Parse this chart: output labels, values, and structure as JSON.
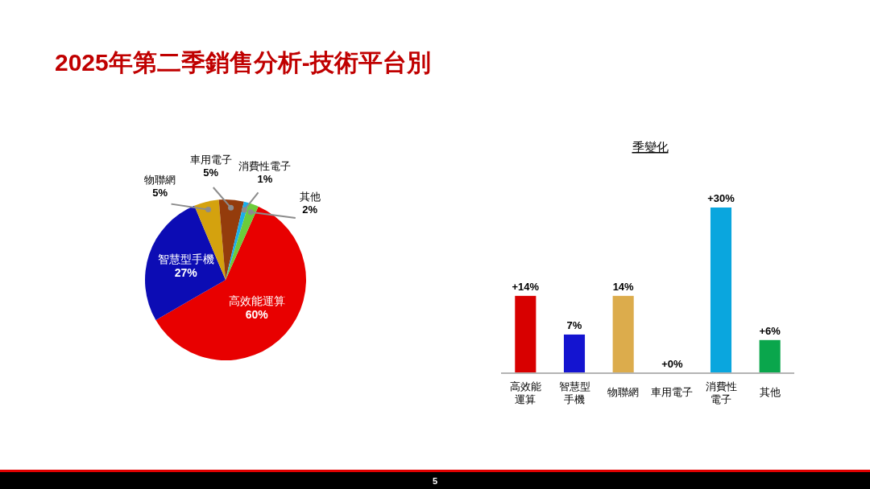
{
  "chart_data": [
    {
      "type": "pie",
      "title": "2025年第二季銷售分析-技術平台別",
      "categories": [
        "高效能運算",
        "智慧型手機",
        "物聯網",
        "車用電子",
        "消費性電子",
        "其他"
      ],
      "values": [
        60,
        27,
        5,
        5,
        1,
        2
      ],
      "value_labels": [
        "60%",
        "27%",
        "5%",
        "5%",
        "1%",
        "2%"
      ],
      "colors": [
        "#e80000",
        "#0c0cb4",
        "#d4a20e",
        "#943c0c",
        "#1aaeea",
        "#6ccb3a"
      ],
      "annotations": [
        "5"
      ]
    },
    {
      "type": "bar",
      "title": "季變化",
      "categories": [
        "高效能運算",
        "智慧型手機",
        "物聯網",
        "車用電子",
        "消費性電子",
        "其他"
      ],
      "values": [
        14,
        7,
        14,
        0,
        30,
        6
      ],
      "value_labels": [
        "+14%",
        "7%",
        "14%",
        "+0%",
        "+30%",
        "+6%"
      ],
      "colors": [
        "#d80000",
        "#1414d0",
        "#dcac4c",
        "#943c0c",
        "#0aa6de",
        "#0aa64c"
      ],
      "tick_labels": "x"
    }
  ]
}
